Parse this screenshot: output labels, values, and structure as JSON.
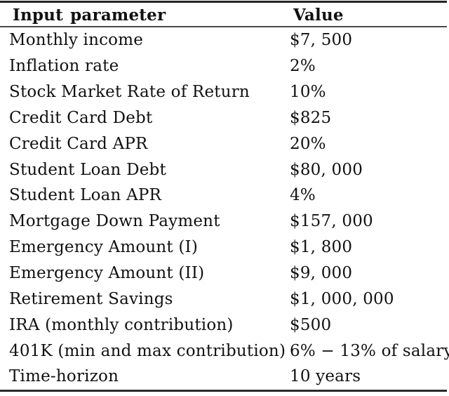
{
  "table": {
    "headers": {
      "parameter": "Input parameter",
      "value": "Value"
    },
    "rows": [
      {
        "parameter": "Monthly income",
        "value": "$7, 500"
      },
      {
        "parameter": "Inflation rate",
        "value": "2%"
      },
      {
        "parameter": "Stock Market Rate of Return",
        "value": "10%"
      },
      {
        "parameter": "Credit Card Debt",
        "value": "$825"
      },
      {
        "parameter": "Credit Card APR",
        "value": "20%"
      },
      {
        "parameter": "Student Loan Debt",
        "value": "$80, 000"
      },
      {
        "parameter": "Student Loan APR",
        "value": "4%"
      },
      {
        "parameter": "Mortgage Down Payment",
        "value": "$157, 000"
      },
      {
        "parameter": "Emergency Amount (I)",
        "value": "$1, 800"
      },
      {
        "parameter": "Emergency Amount (II)",
        "value": "$9, 000"
      },
      {
        "parameter": "Retirement Savings",
        "value": "$1, 000, 000"
      },
      {
        "parameter": "IRA (monthly contribution)",
        "value": "$500"
      },
      {
        "parameter": "401K (min and max contribution)",
        "value": "6% − 13% of salary"
      },
      {
        "parameter": "Time-horizon",
        "value": "10 years"
      }
    ],
    "style": {
      "toprule_color": "#242424",
      "midrule_color": "#4a4a4a",
      "bottomrule_color": "#2b2b2b",
      "text_color": "#111111",
      "background_color": "#ffffff"
    }
  }
}
